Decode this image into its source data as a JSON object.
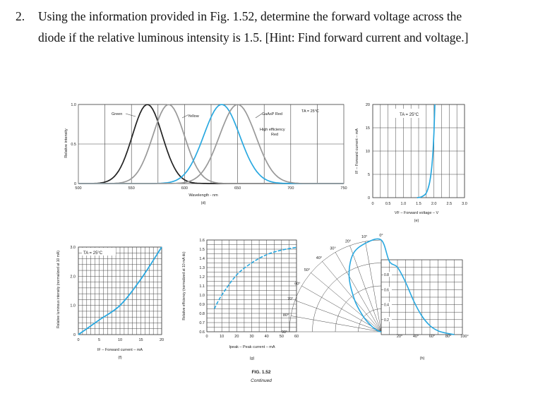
{
  "problem": {
    "number": "2.",
    "text_line1": "Using the information provided in Fig. 1.52, determine the forward voltage across the",
    "text_line2": "diode if the relative luminous intensity is 1.5.  [Hint: Find forward current and voltage.]"
  },
  "figure": {
    "caption": "FIG. 1.52",
    "continued": "Continued",
    "colors": {
      "blue": "#29a8e0",
      "gray": "#999999",
      "grid": "#444444"
    }
  },
  "chart_data": [
    {
      "id": "d",
      "type": "line",
      "panel_label": "(d)",
      "xlabel": "Wavelength - nm",
      "ylabel": "Relative intensity",
      "x_ticks": [
        "500",
        "550",
        "600",
        "650",
        "700",
        "750"
      ],
      "y_ticks": [
        "0",
        "0.5",
        "1.0"
      ],
      "xlim": [
        500,
        750
      ],
      "ylim": [
        0,
        1.0
      ],
      "annotations": [
        "Green",
        "Yellow",
        "GaAsP Red",
        "High efficiency",
        "Red",
        "TA = 25°C"
      ],
      "series": [
        {
          "name": "Green",
          "peak": 565,
          "width": 20,
          "color": "#222222"
        },
        {
          "name": "Yellow",
          "peak": 585,
          "width": 21,
          "color": "#999999"
        },
        {
          "name": "High efficiency Red",
          "peak": 635,
          "width": 24,
          "color": "#29a8e0"
        },
        {
          "name": "GaAsP Red",
          "peak": 650,
          "width": 24,
          "color": "#999999"
        }
      ]
    },
    {
      "id": "e",
      "type": "line",
      "panel_label": "(e)",
      "xlabel": "VF – Forward voltage – V",
      "ylabel": "IF – Forward current – mA",
      "annotations": [
        "TA = 25°C"
      ],
      "x_ticks": [
        "0",
        "0.5",
        "1.0",
        "1.5",
        "2.0",
        "2.5",
        "3.0"
      ],
      "y_ticks": [
        "0",
        "5",
        "10",
        "15",
        "20"
      ],
      "xlim": [
        0,
        3.0
      ],
      "ylim": [
        0,
        20
      ],
      "points": [
        [
          1.45,
          0
        ],
        [
          1.6,
          0.2
        ],
        [
          1.75,
          1
        ],
        [
          1.85,
          3
        ],
        [
          1.92,
          6
        ],
        [
          1.97,
          10
        ],
        [
          2.0,
          14
        ],
        [
          2.03,
          20
        ]
      ]
    },
    {
      "id": "f",
      "type": "line",
      "panel_label": "(f)",
      "xlabel": "IF – Forward current – mA",
      "ylabel": "Relative luminous intensity (normalized at 10 mA)",
      "x_ticks": [
        "0",
        "5",
        "10",
        "15",
        "20"
      ],
      "y_ticks": [
        "0",
        "1.0",
        "2.0",
        "3.0"
      ],
      "xlim": [
        0,
        20
      ],
      "ylim": [
        0,
        3.0
      ],
      "annotations": [
        "TA = 25°C"
      ],
      "points": [
        [
          0,
          0
        ],
        [
          5,
          0.5
        ],
        [
          10,
          1.0
        ],
        [
          15,
          1.9
        ],
        [
          20,
          3.0
        ]
      ]
    },
    {
      "id": "g",
      "type": "line",
      "panel_label": "(g)",
      "xlabel": "Ipeak – Peak current – mA",
      "ylabel": "Relative efficiency (normalized at 10 mA dc)",
      "x_ticks": [
        "0",
        "10",
        "20",
        "30",
        "40",
        "50",
        "60"
      ],
      "y_ticks": [
        "0.6",
        "0.7",
        "0.8",
        "0.9",
        "1.0",
        "1.1",
        "1.2",
        "1.3",
        "1.4",
        "1.5",
        "1.6"
      ],
      "xlim": [
        0,
        60
      ],
      "ylim": [
        0.6,
        1.6
      ],
      "points": [
        [
          5,
          0.85
        ],
        [
          10,
          1.0
        ],
        [
          20,
          1.22
        ],
        [
          30,
          1.35
        ],
        [
          40,
          1.44
        ],
        [
          50,
          1.49
        ],
        [
          60,
          1.52
        ]
      ]
    },
    {
      "id": "h",
      "type": "line",
      "panel_label": "(h)",
      "polar_labels": [
        "0°",
        "10°",
        "20°",
        "30°",
        "40°",
        "50°",
        "60°",
        "70°",
        "80°",
        "90°"
      ],
      "x_ticks": [
        "20°",
        "40°",
        "60°",
        "80°",
        "100°"
      ],
      "y_ticks": [
        "0.2",
        "0.4",
        "0.6",
        "0.8"
      ],
      "points": [
        [
          0,
          1.0
        ],
        [
          10,
          0.98
        ],
        [
          20,
          0.9
        ],
        [
          30,
          0.7
        ],
        [
          40,
          0.45
        ],
        [
          50,
          0.25
        ],
        [
          60,
          0.12
        ],
        [
          70,
          0.05
        ],
        [
          80,
          0.02
        ],
        [
          90,
          0
        ]
      ]
    }
  ]
}
